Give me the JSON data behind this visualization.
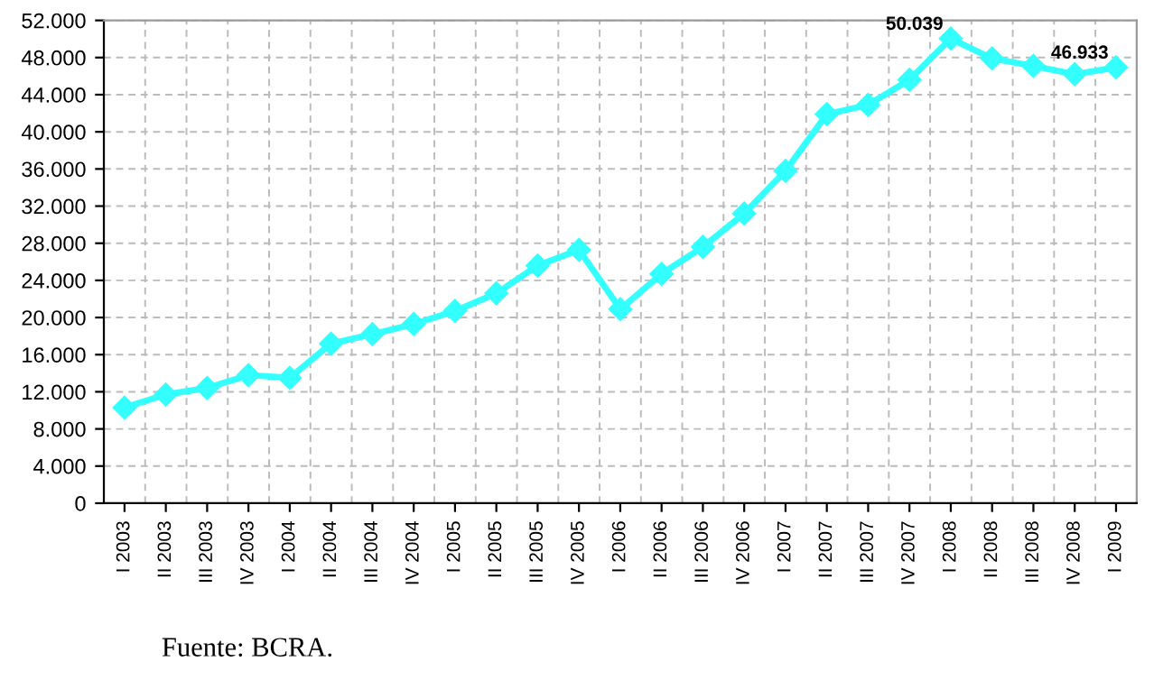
{
  "chart_data": {
    "type": "line",
    "categories": [
      "I 2003",
      "II 2003",
      "III 2003",
      "IV 2003",
      "I 2004",
      "II 2004",
      "III 2004",
      "IV 2004",
      "I 2005",
      "II 2005",
      "III 2005",
      "IV 2005",
      "I 2006",
      "II 2006",
      "III 2006",
      "IV 2006",
      "I 2007",
      "II 2007",
      "III 2007",
      "IV 2007",
      "I 2008",
      "II 2008",
      "III 2008",
      "IV 2008",
      "I 2009"
    ],
    "series": [
      {
        "color": "#33ffff",
        "values": [
          10300,
          11700,
          12400,
          13800,
          13500,
          17200,
          18200,
          19300,
          20700,
          22600,
          25600,
          27300,
          20900,
          24700,
          27600,
          31200,
          35800,
          41900,
          42900,
          45600,
          50039,
          47900,
          47100,
          46200,
          46933
        ],
        "value_labels": [
          null,
          null,
          null,
          null,
          null,
          null,
          null,
          null,
          null,
          null,
          null,
          null,
          null,
          null,
          null,
          null,
          null,
          null,
          null,
          null,
          "50.039",
          null,
          null,
          null,
          "46.933"
        ]
      }
    ],
    "ylim": [
      0,
      52000
    ],
    "yticks": [
      0,
      {
        "value": 4000,
        "label": "4.000"
      },
      {
        "value": 8000,
        "label": "8.000"
      },
      {
        "value": 12000,
        "label": "12.000"
      },
      {
        "value": 16000,
        "label": "16.000"
      },
      {
        "value": 20000,
        "label": "20.000"
      },
      {
        "value": 24000,
        "label": "24.000"
      },
      {
        "value": 28000,
        "label": "28.000"
      },
      {
        "value": 32000,
        "label": "32.000"
      },
      {
        "value": 36000,
        "label": "36.000"
      },
      {
        "value": 40000,
        "label": "40.000"
      },
      {
        "value": 44000,
        "label": "44.000"
      },
      {
        "value": 48000,
        "label": "48.000"
      },
      {
        "value": 52000,
        "label": "52.000"
      }
    ],
    "grid": true,
    "marker": "diamond",
    "line_style": "solid",
    "annotations": [
      "Fuente: BCRA."
    ]
  }
}
